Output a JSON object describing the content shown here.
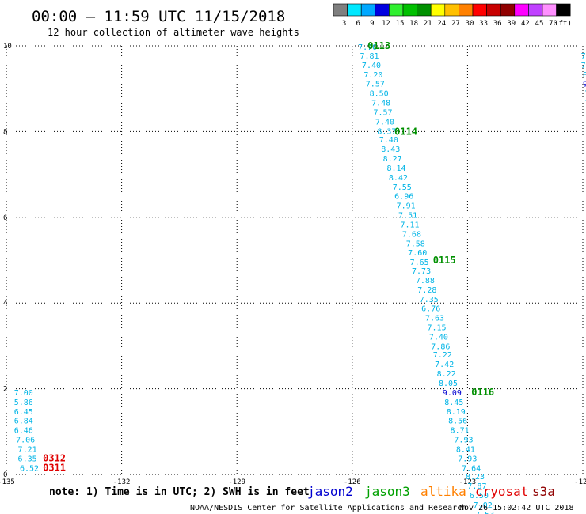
{
  "header": {
    "title": "00:00 – 11:59 UTC 11/15/2018",
    "subtitle": "12 hour collection of altimeter wave heights"
  },
  "scale": {
    "unit": "(ft)",
    "bins": [
      {
        "label": "3",
        "color": "#7f7f7f"
      },
      {
        "label": "6",
        "color": "#00e8ff"
      },
      {
        "label": "9",
        "color": "#00a8ff"
      },
      {
        "label": "12",
        "color": "#0000e0"
      },
      {
        "label": "15",
        "color": "#30f030"
      },
      {
        "label": "18",
        "color": "#00c000"
      },
      {
        "label": "21",
        "color": "#009000"
      },
      {
        "label": "24",
        "color": "#ffff00"
      },
      {
        "label": "27",
        "color": "#ffc000"
      },
      {
        "label": "30",
        "color": "#ff8000"
      },
      {
        "label": "33",
        "color": "#ff0000"
      },
      {
        "label": "36",
        "color": "#c80000"
      },
      {
        "label": "39",
        "color": "#900000"
      },
      {
        "label": "42",
        "color": "#ff00ff"
      },
      {
        "label": "45",
        "color": "#c040ff"
      },
      {
        "label": "70",
        "color": "#ff90ff"
      },
      {
        "label": "",
        "color": "#000000"
      }
    ]
  },
  "footer": {
    "note": "note:  1) Time is in UTC;  2) SWH is in feet",
    "credit": "NOAA/NESDIS Center for Satellite Applications and Research",
    "timestamp": "Nov 26 15:02:42 UTC 2018",
    "missions": [
      {
        "name": "jason2",
        "color": "#0000d0"
      },
      {
        "name": "jason3",
        "color": "#00a000"
      },
      {
        "name": "altika",
        "color": "#ff8000"
      },
      {
        "name": "cryosat",
        "color": "#e00000"
      },
      {
        "name": "s3a",
        "color": "#900000"
      }
    ]
  },
  "chart_data": {
    "type": "scatter",
    "xlim": [
      -135,
      -120
    ],
    "ylim": [
      0,
      10
    ],
    "xticks": [
      {
        "value": -135,
        "label": "-135"
      },
      {
        "value": -132,
        "label": "-132"
      },
      {
        "value": -129,
        "label": "-129"
      },
      {
        "value": -126,
        "label": "-126"
      },
      {
        "value": -123,
        "label": "-123"
      },
      {
        "value": -120,
        "label": "-120"
      }
    ],
    "yticks": [
      {
        "value": 0,
        "label": "0"
      },
      {
        "value": 2,
        "label": "2"
      },
      {
        "value": 4,
        "label": "4"
      },
      {
        "value": 6,
        "label": "6"
      },
      {
        "value": 8,
        "label": "8"
      },
      {
        "value": 10,
        "label": "10"
      }
    ],
    "grid": true,
    "series": [
      {
        "color": "#00b4e6",
        "x": [
          -126.0,
          -125.85,
          -125.7,
          -125.55,
          -125.4,
          -125.25,
          -125.1,
          -124.95,
          -124.8,
          -124.65,
          -124.5,
          -124.35,
          -124.2,
          -124.05,
          -123.9
        ],
        "y": [
          1.98,
          1.76,
          1.54,
          1.32,
          1.1,
          0.88,
          0.66,
          0.44,
          0.22,
          0.0,
          -0.1,
          -0.2,
          -0.3,
          -0.4,
          -0.5
        ]
      }
    ],
    "tracks": [
      {
        "name": "diagonal-track",
        "points": [
          {
            "x": -125.85,
            "y": 9.98,
            "v": "7.70",
            "c": "#00b4e6"
          },
          {
            "x": -125.8,
            "y": 9.78,
            "v": "7.81",
            "c": "#00b4e6"
          },
          {
            "x": -125.75,
            "y": 9.56,
            "v": "7.40",
            "c": "#00b4e6"
          },
          {
            "x": -125.7,
            "y": 9.34,
            "v": "7.20",
            "c": "#00b4e6"
          },
          {
            "x": -125.65,
            "y": 9.12,
            "v": "7.57",
            "c": "#00b4e6"
          },
          {
            "x": -125.55,
            "y": 8.9,
            "v": "8.50",
            "c": "#00b4e6"
          },
          {
            "x": -125.5,
            "y": 8.68,
            "v": "7.48",
            "c": "#00b4e6"
          },
          {
            "x": -125.45,
            "y": 8.46,
            "v": "7.57",
            "c": "#00b4e6"
          },
          {
            "x": -125.4,
            "y": 8.24,
            "v": "7.40",
            "c": "#00b4e6"
          },
          {
            "x": -125.35,
            "y": 8.02,
            "v": "8.37",
            "c": "#00b4e6"
          },
          {
            "x": -125.3,
            "y": 7.82,
            "v": "7.40",
            "c": "#00b4e6"
          },
          {
            "x": -125.25,
            "y": 7.6,
            "v": "8.43",
            "c": "#00b4e6"
          },
          {
            "x": -125.2,
            "y": 7.38,
            "v": "8.27",
            "c": "#00b4e6"
          },
          {
            "x": -125.1,
            "y": 7.16,
            "v": "8.14",
            "c": "#00b4e6"
          },
          {
            "x": -125.05,
            "y": 6.94,
            "v": "8.42",
            "c": "#00b4e6"
          },
          {
            "x": -124.95,
            "y": 6.72,
            "v": "7.55",
            "c": "#00b4e6"
          },
          {
            "x": -124.9,
            "y": 6.5,
            "v": "6.96",
            "c": "#00b4e6"
          },
          {
            "x": -124.85,
            "y": 6.28,
            "v": "7.91",
            "c": "#00b4e6"
          },
          {
            "x": -124.8,
            "y": 6.06,
            "v": "7.51",
            "c": "#00b4e6"
          },
          {
            "x": -124.75,
            "y": 5.84,
            "v": "7.11",
            "c": "#00b4e6"
          },
          {
            "x": -124.7,
            "y": 5.62,
            "v": "7.68",
            "c": "#00b4e6"
          },
          {
            "x": -124.6,
            "y": 5.4,
            "v": "7.58",
            "c": "#00b4e6"
          },
          {
            "x": -124.55,
            "y": 5.18,
            "v": "7.60",
            "c": "#00b4e6"
          },
          {
            "x": -124.5,
            "y": 4.96,
            "v": "7.65",
            "c": "#00b4e6"
          },
          {
            "x": -124.45,
            "y": 4.76,
            "v": "7.73",
            "c": "#00b4e6"
          },
          {
            "x": -124.35,
            "y": 4.54,
            "v": "7.88",
            "c": "#00b4e6"
          },
          {
            "x": -124.3,
            "y": 4.32,
            "v": "7.28",
            "c": "#00b4e6"
          },
          {
            "x": -124.25,
            "y": 4.1,
            "v": "7.35",
            "c": "#00b4e6"
          },
          {
            "x": -124.2,
            "y": 3.88,
            "v": "6.76",
            "c": "#00b4e6"
          },
          {
            "x": -124.1,
            "y": 3.66,
            "v": "7.63",
            "c": "#00b4e6"
          },
          {
            "x": -124.05,
            "y": 3.44,
            "v": "7.15",
            "c": "#00b4e6"
          },
          {
            "x": -124.0,
            "y": 3.22,
            "v": "7.40",
            "c": "#00b4e6"
          },
          {
            "x": -123.95,
            "y": 3.0,
            "v": "7.86",
            "c": "#00b4e6"
          },
          {
            "x": -123.9,
            "y": 2.8,
            "v": "7.22",
            "c": "#00b4e6"
          },
          {
            "x": -123.85,
            "y": 2.58,
            "v": "7.42",
            "c": "#00b4e6"
          },
          {
            "x": -123.8,
            "y": 2.36,
            "v": "8.22",
            "c": "#00b4e6"
          },
          {
            "x": -123.75,
            "y": 2.14,
            "v": "8.05",
            "c": "#00b4e6"
          },
          {
            "x": -123.65,
            "y": 1.92,
            "v": "9.09",
            "c": "#0000d0"
          },
          {
            "x": -123.6,
            "y": 1.7,
            "v": "8.45",
            "c": "#00b4e6"
          },
          {
            "x": -123.55,
            "y": 1.48,
            "v": "8.19",
            "c": "#00b4e6"
          },
          {
            "x": -123.5,
            "y": 1.26,
            "v": "8.56",
            "c": "#00b4e6"
          },
          {
            "x": -123.45,
            "y": 1.04,
            "v": "8.71",
            "c": "#00b4e6"
          },
          {
            "x": -123.35,
            "y": 0.82,
            "v": "7.93",
            "c": "#00b4e6"
          },
          {
            "x": -123.3,
            "y": 0.6,
            "v": "8.41",
            "c": "#00b4e6"
          },
          {
            "x": -123.25,
            "y": 0.38,
            "v": "7.93",
            "c": "#00b4e6"
          },
          {
            "x": -123.15,
            "y": 0.16,
            "v": "7.64",
            "c": "#00b4e6"
          },
          {
            "x": -123.05,
            "y": -0.04,
            "v": "8.23",
            "c": "#00b4e6"
          },
          {
            "x": -123.0,
            "y": -0.26,
            "v": "7.87",
            "c": "#00b4e6"
          },
          {
            "x": -122.95,
            "y": -0.48,
            "v": "6.50",
            "c": "#00b4e6"
          },
          {
            "x": -122.85,
            "y": -0.7,
            "v": "7.02",
            "c": "#00b4e6"
          },
          {
            "x": -122.8,
            "y": -0.92,
            "v": "7.53",
            "c": "#00b4e6"
          }
        ]
      },
      {
        "name": "left-track",
        "points": [
          {
            "x": -134.8,
            "y": 1.92,
            "v": "7.00",
            "c": "#00b4e6"
          },
          {
            "x": -134.8,
            "y": 1.7,
            "v": "5.86",
            "c": "#00b4e6"
          },
          {
            "x": -134.8,
            "y": 1.48,
            "v": "6.45",
            "c": "#00b4e6"
          },
          {
            "x": -134.8,
            "y": 1.26,
            "v": "6.84",
            "c": "#00b4e6"
          },
          {
            "x": -134.8,
            "y": 1.04,
            "v": "6.46",
            "c": "#00b4e6"
          },
          {
            "x": -134.75,
            "y": 0.82,
            "v": "7.06",
            "c": "#00b4e6"
          },
          {
            "x": -134.7,
            "y": 0.6,
            "v": "7.21",
            "c": "#00b4e6"
          },
          {
            "x": -134.7,
            "y": 0.38,
            "v": "6.35",
            "c": "#00b4e6"
          },
          {
            "x": -134.65,
            "y": 0.16,
            "v": "6.52",
            "c": "#00b4e6"
          }
        ]
      },
      {
        "name": "right-edge-track",
        "points": [
          {
            "x": -120.05,
            "y": 9.78,
            "v": "7.8",
            "c": "#00b4e6"
          },
          {
            "x": -120.05,
            "y": 9.56,
            "v": "7.0",
            "c": "#00b4e6"
          },
          {
            "x": -120.0,
            "y": 9.34,
            "v": "8.5",
            "c": "#00b4e6"
          },
          {
            "x": -120.0,
            "y": 9.12,
            "v": "9.",
            "c": "#0000d0"
          },
          {
            "x": -119.95,
            "y": 8.9,
            "v": "7",
            "c": "#00b4e6"
          },
          {
            "x": -119.95,
            "y": 8.68,
            "v": "7",
            "c": "#00b4e6"
          },
          {
            "x": -119.9,
            "y": 8.46,
            "v": "1",
            "c": "#00b4e6"
          }
        ]
      }
    ],
    "time_labels": [
      {
        "x": -125.6,
        "y": 10.0,
        "text": "0113",
        "color": "#009000"
      },
      {
        "x": -124.9,
        "y": 8.0,
        "text": "0114",
        "color": "#009000"
      },
      {
        "x": -123.9,
        "y": 5.0,
        "text": "0115",
        "color": "#009000"
      },
      {
        "x": -122.9,
        "y": 1.92,
        "text": "0116",
        "color": "#009000"
      },
      {
        "x": -134.05,
        "y": 0.38,
        "text": "0312",
        "color": "#e00000"
      },
      {
        "x": -134.05,
        "y": 0.16,
        "text": "0311",
        "color": "#e00000"
      }
    ]
  }
}
